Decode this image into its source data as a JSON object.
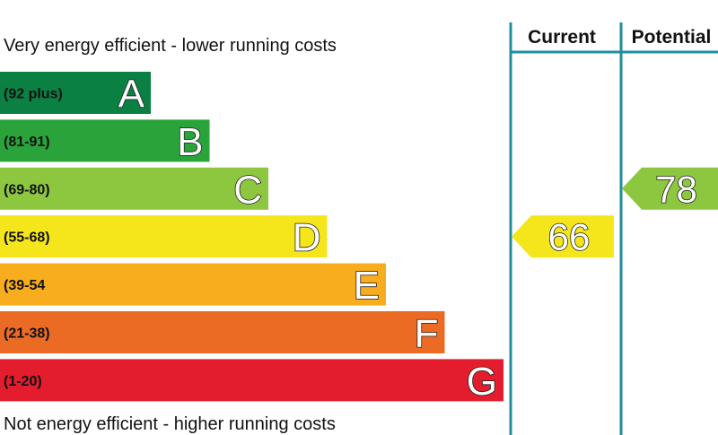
{
  "chart_data": {
    "type": "bar",
    "title": "",
    "top_caption": "Very energy efficient - lower running costs",
    "bottom_caption": "Not energy efficient - higher running costs",
    "bands": [
      {
        "letter": "A",
        "range": "(92 plus)",
        "color": "#0a8043"
      },
      {
        "letter": "B",
        "range": "(81-91)",
        "color": "#2aa43a"
      },
      {
        "letter": "C",
        "range": "(69-80)",
        "color": "#8dc63f"
      },
      {
        "letter": "D",
        "range": "(55-68)",
        "color": "#f5e61c"
      },
      {
        "letter": "E",
        "range": "(39-54",
        "color": "#f7ad1d"
      },
      {
        "letter": "F",
        "range": "(21-38)",
        "color": "#ec6b24"
      },
      {
        "letter": "G",
        "range": "(1-20)",
        "color": "#e31d2d"
      }
    ],
    "columns": [
      "Current",
      "Potential"
    ],
    "current": {
      "value": 66,
      "band": "D",
      "color": "#f5e61c"
    },
    "potential": {
      "value": 78,
      "band": "C",
      "color": "#8dc63f"
    },
    "grid_color": "#1f8f9c"
  }
}
